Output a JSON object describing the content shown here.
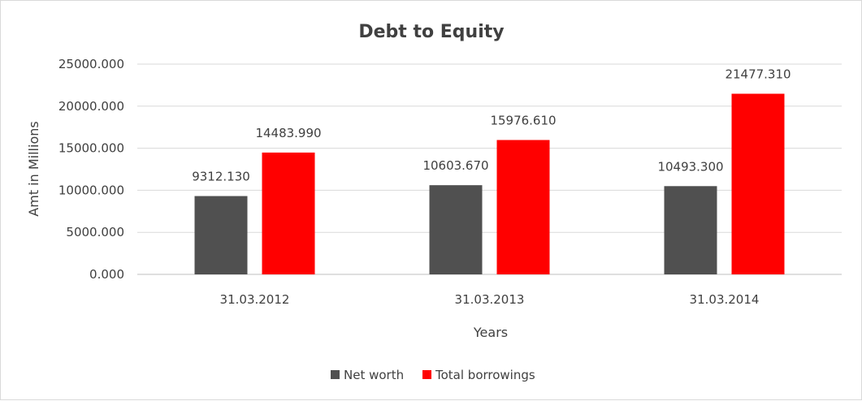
{
  "chart_data": {
    "type": "bar",
    "title": "Debt to Equity",
    "xlabel": "Years",
    "ylabel": "Amt in Millions",
    "categories": [
      "31.03.2012",
      "31.03.2013",
      "31.03.2014"
    ],
    "series": [
      {
        "name": "Net worth",
        "color": "#505050",
        "values": [
          9312.13,
          10603.67,
          10493.3
        ],
        "labels": [
          "9312.130",
          "10603.670",
          "10493.300"
        ]
      },
      {
        "name": "Total borrowings",
        "color": "#ff0000",
        "values": [
          14483.99,
          15976.61,
          21477.31
        ],
        "labels": [
          "14483.990",
          "15976.610",
          "21477.310"
        ]
      }
    ],
    "ylim": [
      0,
      25000
    ],
    "yticks": [
      0,
      5000,
      10000,
      15000,
      20000,
      25000
    ],
    "ytick_labels": [
      "0.000",
      "5000.000",
      "10000.000",
      "15000.000",
      "20000.000",
      "25000.000"
    ],
    "grid": true,
    "legend_position": "bottom"
  }
}
